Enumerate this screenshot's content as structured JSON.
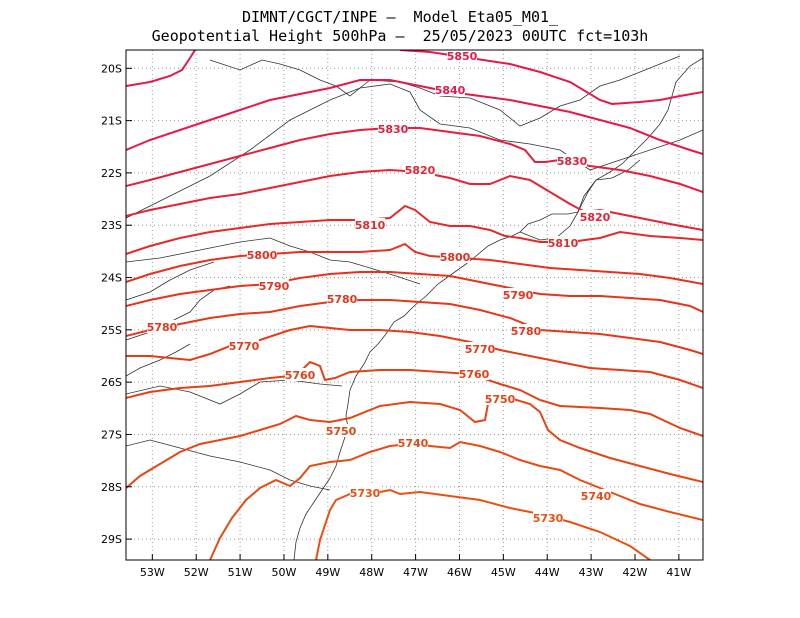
{
  "title_line1": "DIMNT/CGCT/INPE –  Model Eta05_M01_",
  "title_line2": "Geopotential Height 500hPa –  25/05/2023 00UTC fct=103h",
  "lat_labels": [
    "20S",
    "21S",
    "22S",
    "23S",
    "24S",
    "25S",
    "26S",
    "27S",
    "28S",
    "29S"
  ],
  "lon_labels": [
    "53W",
    "52W",
    "51W",
    "50W",
    "49W",
    "48W",
    "47W",
    "46W",
    "45W",
    "44W",
    "43W",
    "42W",
    "41W"
  ],
  "lat_values": [
    -20,
    -21,
    -22,
    -23,
    -24,
    -25,
    -26,
    -27,
    -28,
    -29
  ],
  "lon_values": [
    -53,
    -52,
    -51,
    -50,
    -49,
    -48,
    -47,
    -46,
    -45,
    -44,
    -43,
    -42,
    -41
  ],
  "extent": {
    "lon_min": -53.6,
    "lon_max": -40.45,
    "lat_min": -29.4,
    "lat_max": -19.65
  },
  "contour_levels": [
    {
      "value": "5850",
      "color": "#e8174a"
    },
    {
      "value": "5840",
      "color": "#e8174a"
    },
    {
      "value": "5830",
      "color": "#e81c3e"
    },
    {
      "value": "5820",
      "color": "#e82232"
    },
    {
      "value": "5810",
      "color": "#e82828"
    },
    {
      "value": "5800",
      "color": "#e82f20"
    },
    {
      "value": "5790",
      "color": "#e8321c"
    },
    {
      "value": "5780",
      "color": "#e83619"
    },
    {
      "value": "5770",
      "color": "#e83a17"
    },
    {
      "value": "5760",
      "color": "#e83e16"
    },
    {
      "value": "5750",
      "color": "#e84414"
    },
    {
      "value": "5740",
      "color": "#ea4a12"
    },
    {
      "value": "5730",
      "color": "#ec5010"
    }
  ]
}
